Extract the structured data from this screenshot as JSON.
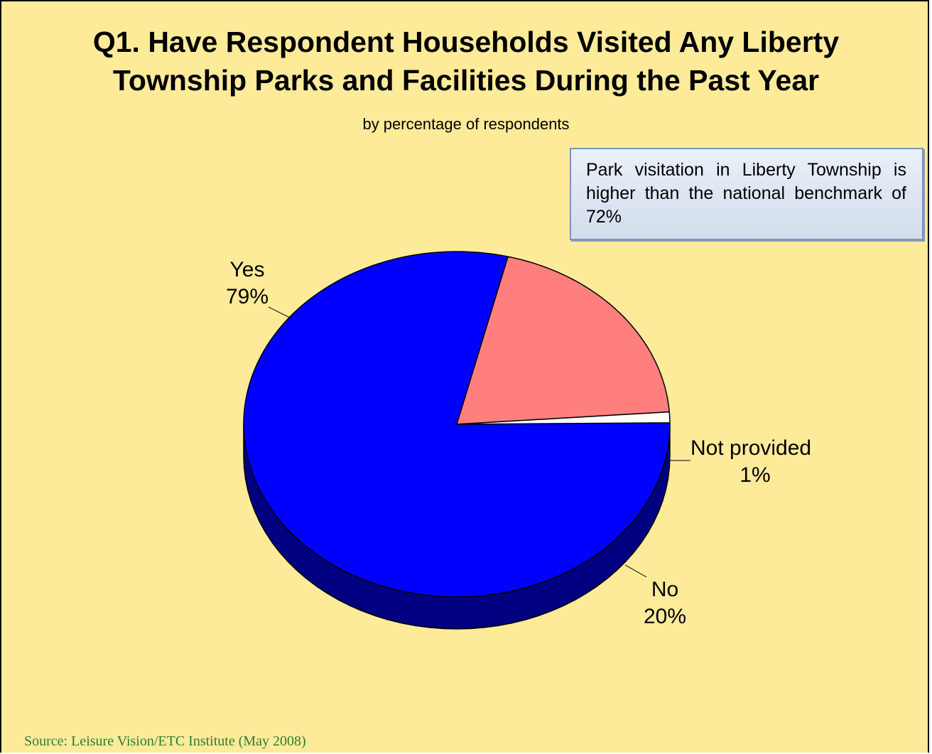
{
  "chart_data": {
    "type": "pie",
    "title": "Q1. Have Respondent Households Visited Any Liberty Township Parks and Facilities During the Past Year",
    "title_lines": [
      "Q1. Have Respondent Households Visited Any Liberty",
      "Township Parks and Facilities During the Past Year"
    ],
    "subtitle": "by percentage of respondents",
    "slices": [
      {
        "key": "yes",
        "label": "Yes",
        "value": 79,
        "value_label": "79%",
        "color": "#0000ff",
        "side_color": "#000080"
      },
      {
        "key": "no",
        "label": "No",
        "value": 20,
        "value_label": "20%",
        "color": "#ff7f7f",
        "side_color": "#7f3f3f"
      },
      {
        "key": "not-provided",
        "label": "Not provided",
        "value": 1,
        "value_label": "1%",
        "color": "#ffffff",
        "side_color": "#808080"
      }
    ],
    "style": "3d-tilted"
  },
  "callout": {
    "text": "Park visitation in Liberty Township is higher than the national benchmark of 72%"
  },
  "source": "Source:  Leisure Vision/ETC Institute (May 2008)",
  "colors": {
    "background": "#feeb9a",
    "outline": "#000000",
    "source_text": "#2e7d32"
  }
}
